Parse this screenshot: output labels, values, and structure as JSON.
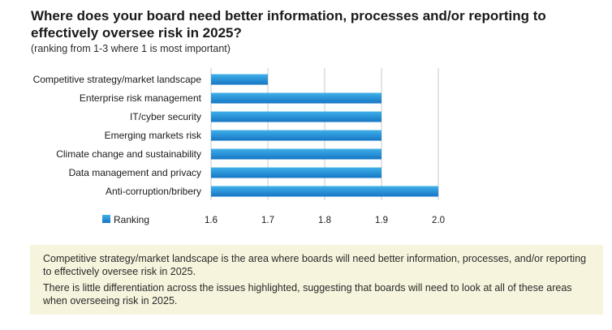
{
  "header": {
    "title": "Where does your board need better information, processes and/or reporting to effectively oversee risk in 2025?",
    "subtitle": "(ranking from 1-3 where 1 is most important)"
  },
  "colors": {
    "bar_top": "#3fb0ea",
    "bar_bottom": "#1676c4",
    "grid": "#c9c9c9",
    "note_bg": "#f6f4dd"
  },
  "chart_data": {
    "type": "bar",
    "orientation": "horizontal",
    "categories": [
      "Competitive strategy/market landscape",
      "Enterprise risk management",
      "IT/cyber security",
      "Emerging markets risk",
      "Climate change and sustainability",
      "Data management and privacy",
      "Anti-corruption/bribery"
    ],
    "series": [
      {
        "name": "Ranking",
        "values": [
          1.7,
          1.9,
          1.9,
          1.9,
          1.9,
          1.9,
          2.0
        ]
      }
    ],
    "xlim": [
      1.6,
      2.0
    ],
    "xticks": [
      1.6,
      1.7,
      1.8,
      1.9,
      2.0
    ],
    "xtick_labels": [
      "1.6",
      "1.7",
      "1.8",
      "1.9",
      "2.0"
    ],
    "grid": "vertical",
    "legend": "bottom-left"
  },
  "notes": [
    "Competitive strategy/market landscape is the area where boards will need better information, processes, and/or reporting to effectively oversee risk in 2025.",
    "There is little differentiation across the issues highlighted, suggesting that boards will need to look at all of these areas when overseeing risk in 2025."
  ]
}
